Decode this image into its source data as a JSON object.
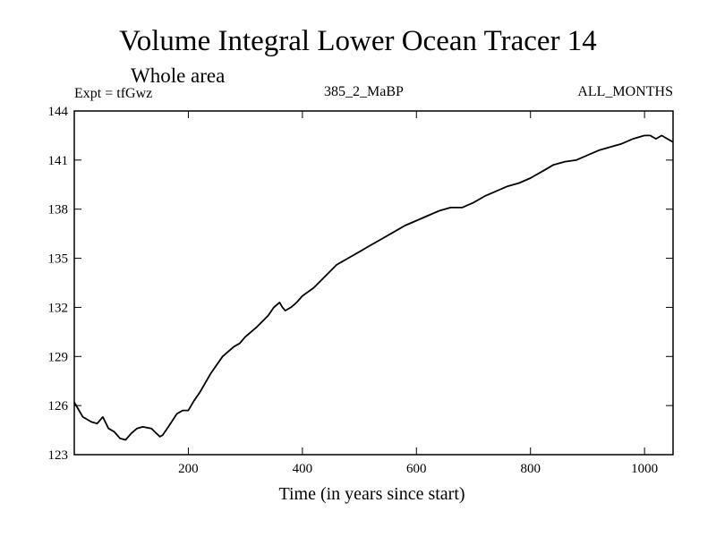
{
  "chart_data": {
    "type": "line",
    "title": "Volume Integral Lower Ocean Tracer 14",
    "subtitle": "Whole area",
    "annotation_left": "Expt = tfGwz",
    "annotation_center": "385_2_MaBP",
    "annotation_right": "ALL_MONTHS",
    "xlabel": "Time (in years since start)",
    "ylabel": "",
    "xlim": [
      0,
      1050
    ],
    "ylim": [
      123,
      144
    ],
    "xticks": [
      200,
      400,
      600,
      800,
      1000
    ],
    "yticks": [
      123,
      126,
      129,
      132,
      135,
      138,
      141,
      144
    ],
    "series": [
      {
        "name": "Tracer 14",
        "x": [
          0,
          15,
          30,
          40,
          50,
          60,
          70,
          80,
          90,
          100,
          110,
          120,
          135,
          150,
          155,
          165,
          180,
          190,
          200,
          210,
          220,
          240,
          260,
          280,
          290,
          300,
          320,
          340,
          350,
          360,
          365,
          370,
          380,
          390,
          400,
          420,
          440,
          460,
          480,
          500,
          520,
          540,
          560,
          580,
          600,
          620,
          640,
          660,
          680,
          700,
          720,
          740,
          760,
          780,
          800,
          820,
          840,
          860,
          880,
          900,
          920,
          940,
          960,
          980,
          1000,
          1010,
          1020,
          1030,
          1040,
          1050
        ],
        "y": [
          126.2,
          125.3,
          125.0,
          124.9,
          125.3,
          124.6,
          124.4,
          124.0,
          123.9,
          124.3,
          124.6,
          124.7,
          124.6,
          124.1,
          124.2,
          124.7,
          125.5,
          125.7,
          125.7,
          126.3,
          126.8,
          128.0,
          129.0,
          129.6,
          129.8,
          130.2,
          130.8,
          131.5,
          132.0,
          132.3,
          132.0,
          131.8,
          132.0,
          132.3,
          132.7,
          133.2,
          133.9,
          134.6,
          135.0,
          135.4,
          135.8,
          136.2,
          136.6,
          137.0,
          137.3,
          137.6,
          137.9,
          138.1,
          138.1,
          138.4,
          138.8,
          139.1,
          139.4,
          139.6,
          139.9,
          140.3,
          140.7,
          140.9,
          141.0,
          141.3,
          141.6,
          141.8,
          142.0,
          142.3,
          142.5,
          142.5,
          142.3,
          142.5,
          142.3,
          142.1
        ]
      }
    ]
  }
}
